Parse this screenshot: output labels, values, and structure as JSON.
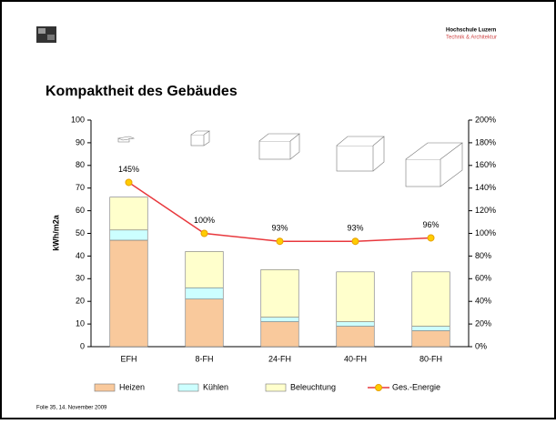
{
  "header": {
    "institution": "Hochschule Luzern",
    "department": "Technik & Architektur"
  },
  "footer": "Folie   35, 14. November 2009",
  "chart_data": {
    "type": "bar",
    "stacked": true,
    "title": "Kompaktheit des Gebäudes",
    "y_label": "kWh/m2a",
    "categories": [
      "EFH",
      "8-FH",
      "24-FH",
      "40-FH",
      "80-FH"
    ],
    "series": [
      {
        "name": "Heizen",
        "color": "#f9c99c",
        "values": [
          47,
          21,
          11,
          9,
          7
        ]
      },
      {
        "name": "Kühlen",
        "color": "#ccffff",
        "values": [
          4.5,
          5,
          2,
          2,
          2
        ]
      },
      {
        "name": "Beleuchtung",
        "color": "#ffffcc",
        "values": [
          14.5,
          16,
          21,
          22,
          24
        ]
      },
      {
        "name": "Ges.-Energie",
        "type": "line",
        "axis": "y2",
        "color": "#e8383d",
        "marker_color": "#ffcc00",
        "values": [
          145,
          100,
          93,
          93,
          96
        ],
        "value_labels": [
          "145%",
          "100%",
          "93%",
          "93%",
          "96%"
        ]
      }
    ],
    "ylim": [
      0,
      100
    ],
    "yticks": [
      0,
      10,
      20,
      30,
      40,
      50,
      60,
      70,
      80,
      90,
      100
    ],
    "y2lim": [
      0,
      200
    ],
    "y2ticks": [
      {
        "value": 0,
        "label": "0%"
      },
      {
        "value": 20,
        "label": "20%"
      },
      {
        "value": 40,
        "label": "40%"
      },
      {
        "value": 60,
        "label": "60%"
      },
      {
        "value": 80,
        "label": "80%"
      },
      {
        "value": 100,
        "label": "100%"
      },
      {
        "value": 120,
        "label": "120%"
      },
      {
        "value": 140,
        "label": "140%"
      },
      {
        "value": 160,
        "label": "160%"
      },
      {
        "value": 180,
        "label": "180%"
      },
      {
        "value": 200,
        "label": "200%"
      }
    ],
    "legend": "bottom"
  }
}
